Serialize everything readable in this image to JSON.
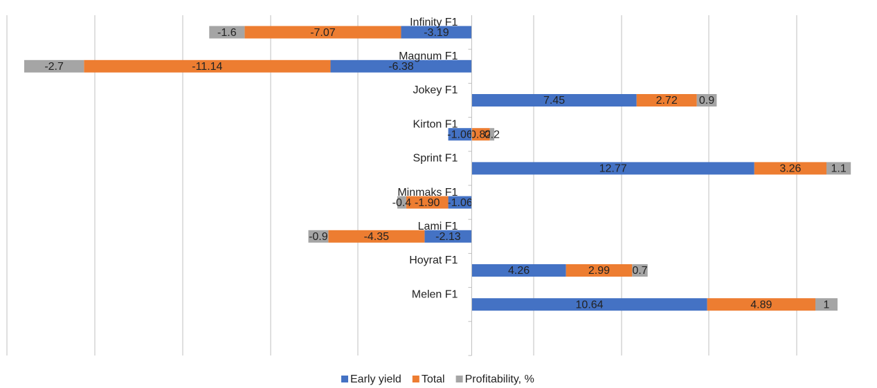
{
  "chart_data": {
    "type": "stacked-bar-horizontal",
    "categories": [
      "Infinity F1",
      "Magnum F1",
      "Jokey F1",
      "Kirton F1",
      "Sprint F1",
      "Minmaks F1",
      "Lami F1",
      "Hoyrat F1",
      "Melen F1",
      null
    ],
    "series": [
      {
        "name": "Early yield",
        "color": "#4472c4",
        "values": [
          -3.19,
          -6.38,
          7.45,
          -1.06,
          12.77,
          -1.06,
          -2.13,
          4.26,
          10.64,
          null
        ]
      },
      {
        "name": "Total",
        "color": "#ed7d31",
        "values": [
          -7.07,
          -11.14,
          2.72,
          0.82,
          3.26,
          -1.9,
          -4.35,
          2.99,
          4.89,
          null
        ],
        "value_labels": [
          "-7.07",
          "-11.14",
          "2.72",
          "0.82",
          "3.26",
          "-1.90",
          "-4.35",
          "2.99",
          "4.89",
          null
        ]
      },
      {
        "name": "Profitability, %",
        "color": "#a5a5a5",
        "values": [
          -1.6,
          -2.7,
          0.9,
          0.2,
          1.1,
          -0.4,
          -0.9,
          0.7,
          1,
          null
        ]
      }
    ],
    "xlim": [
      -21,
      18
    ],
    "legend": "bottom"
  }
}
